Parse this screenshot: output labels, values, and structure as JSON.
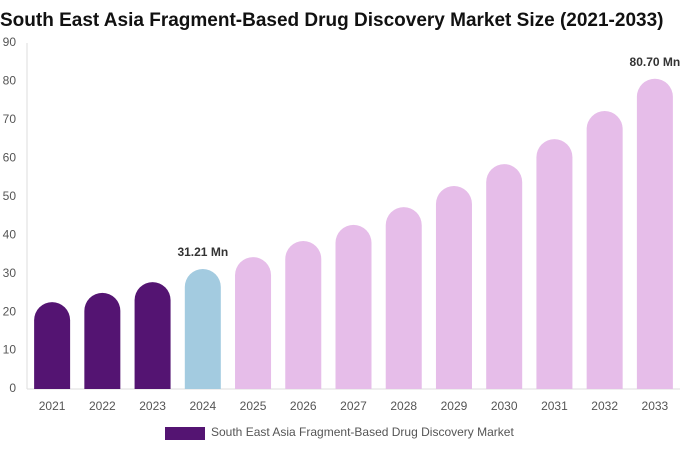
{
  "chart_data": {
    "type": "bar",
    "title": "South East Asia Fragment-Based Drug Discovery Market Size (2021-2033)",
    "categories": [
      "2021",
      "2022",
      "2023",
      "2024",
      "2025",
      "2026",
      "2027",
      "2028",
      "2029",
      "2030",
      "2031",
      "2032",
      "2033"
    ],
    "series": [
      {
        "name": "South East Asia Fragment-Based Drug Discovery Market",
        "color": "#541472",
        "values": [
          22.6,
          25,
          27.8,
          31.21,
          34.3,
          38.5,
          42.7,
          47.3,
          52.8,
          58.5,
          65,
          72.3,
          80.7
        ],
        "value_labels": [
          null,
          null,
          null,
          "31.21 Mn",
          null,
          null,
          null,
          null,
          null,
          null,
          null,
          null,
          "80.70 Mn"
        ],
        "colors": [
          "#541472",
          "#541472",
          "#541472",
          "#a3cbe0",
          "#e6bde9",
          "#e6bde9",
          "#e6bde9",
          "#e6bde9",
          "#e6bde9",
          "#e6bde9",
          "#e6bde9",
          "#e6bde9",
          "#e6bde9"
        ]
      }
    ],
    "ylim": [
      0,
      90
    ],
    "yticks": [
      0,
      10,
      20,
      30,
      40,
      50,
      60,
      70,
      80,
      90
    ],
    "grid": false
  }
}
